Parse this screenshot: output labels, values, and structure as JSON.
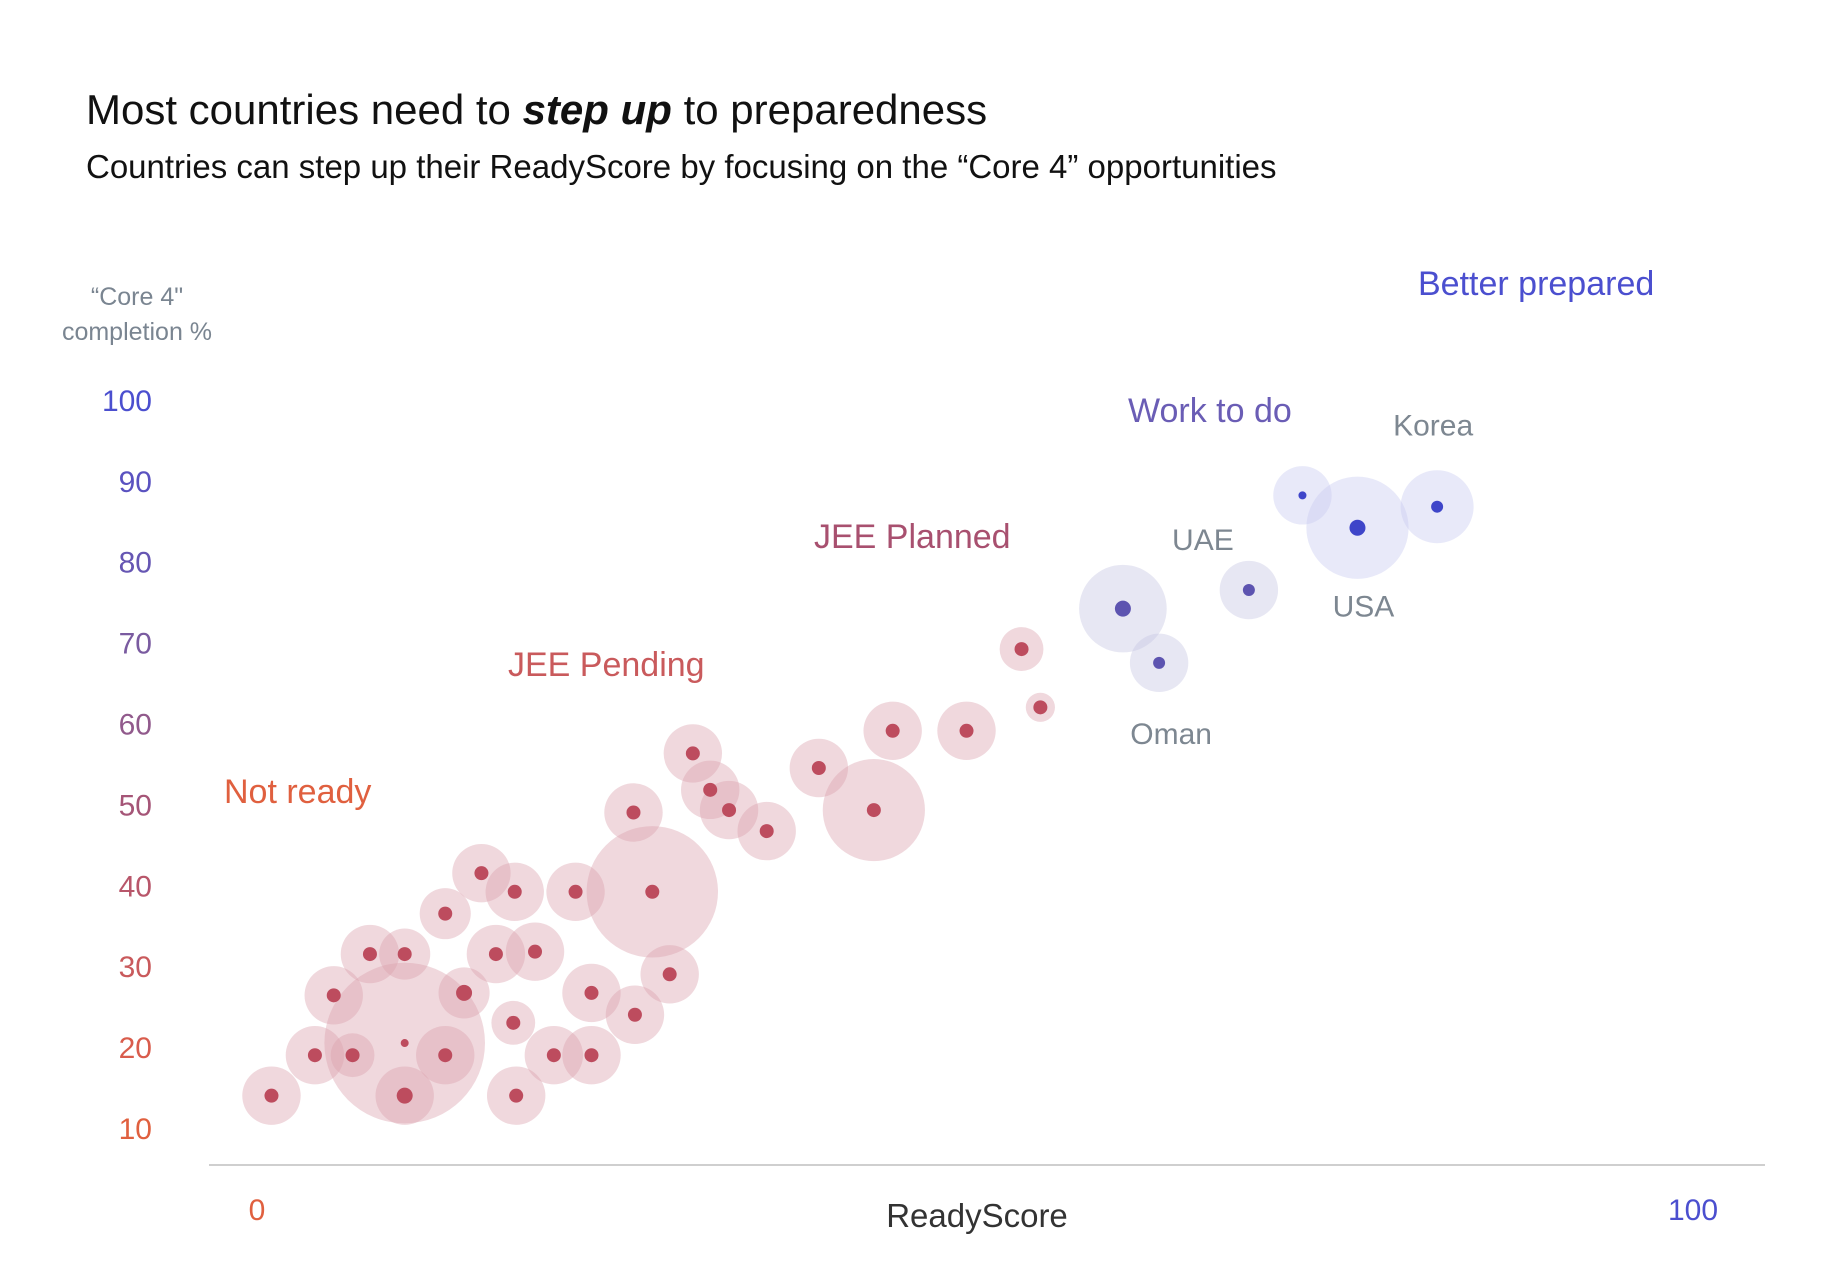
{
  "title": {
    "before": "Most countries need to ",
    "emph": "step up",
    "after": " to preparedness"
  },
  "subtitle": "Countries can step up their ReadyScore by focusing on the “Core 4” opportunities",
  "y_axis_title": {
    "line1": "“Core 4\"",
    "line2": "completion %"
  },
  "chart_data": {
    "type": "scatter",
    "xlabel": "ReadyScore",
    "ylabel": "“Core 4\" completion %",
    "xlim": [
      0,
      100
    ],
    "ylim": [
      5,
      105
    ],
    "x_tick_labels": [
      {
        "value": 0,
        "label": "0",
        "color": "#e0603f"
      },
      {
        "value": 100,
        "label": "100",
        "color": "#4b4fcf"
      }
    ],
    "y_ticks": [
      {
        "value": 10,
        "label": "10",
        "color": "#e0603f"
      },
      {
        "value": 20,
        "label": "20",
        "color": "#d95c4c"
      },
      {
        "value": 30,
        "label": "30",
        "color": "#c95a5c"
      },
      {
        "value": 40,
        "label": "40",
        "color": "#b8566a"
      },
      {
        "value": 50,
        "label": "50",
        "color": "#a55577"
      },
      {
        "value": 60,
        "label": "60",
        "color": "#915a8c"
      },
      {
        "value": 70,
        "label": "70",
        "color": "#7a5ba0"
      },
      {
        "value": 80,
        "label": "80",
        "color": "#6656b3"
      },
      {
        "value": 90,
        "label": "90",
        "color": "#5a52c0"
      },
      {
        "value": 100,
        "label": "100",
        "color": "#4b4fcf"
      }
    ],
    "grid": false,
    "size_encoding": "bubble radius",
    "groups": [
      {
        "name": "Not ready",
        "color": "#e0603f"
      },
      {
        "name": "JEE Pending",
        "color": "#c95a5c"
      },
      {
        "name": "JEE Planned",
        "color": "#a8506f"
      },
      {
        "name": "Work to do",
        "color": "#6a5db5"
      },
      {
        "name": "Better prepared",
        "color": "#4b4fcf"
      }
    ],
    "series": [
      {
        "group": "JEE Pending",
        "halo_color": "#dca3ae",
        "dot_color": "#bd4c5e",
        "points": [
          {
            "x": 1,
            "y": 14,
            "size": 4,
            "dot": 7
          },
          {
            "x": 4,
            "y": 19,
            "size": 4,
            "dot": 7
          },
          {
            "x": 5.3,
            "y": 26.4,
            "size": 4,
            "dot": 7
          },
          {
            "x": 6.6,
            "y": 19,
            "size": 3,
            "dot": 7
          },
          {
            "x": 7.8,
            "y": 31.5,
            "size": 4,
            "dot": 7
          },
          {
            "x": 10.2,
            "y": 20.5,
            "size": 11,
            "dot": 4
          },
          {
            "x": 10.2,
            "y": 31.5,
            "size": 3.5,
            "dot": 7
          },
          {
            "x": 10.2,
            "y": 14,
            "size": 4,
            "dot": 8
          },
          {
            "x": 13,
            "y": 36.5,
            "size": 3.5,
            "dot": 7
          },
          {
            "x": 13,
            "y": 19,
            "size": 4,
            "dot": 7
          },
          {
            "x": 14.3,
            "y": 26.7,
            "size": 3.5,
            "dot": 8
          },
          {
            "x": 15.5,
            "y": 41.5,
            "size": 4,
            "dot": 7
          },
          {
            "x": 16.5,
            "y": 31.5,
            "size": 4,
            "dot": 7
          },
          {
            "x": 17.8,
            "y": 39.2,
            "size": 4,
            "dot": 7
          },
          {
            "x": 17.7,
            "y": 23,
            "size": 3,
            "dot": 7
          },
          {
            "x": 17.9,
            "y": 14,
            "size": 4,
            "dot": 7
          },
          {
            "x": 19.2,
            "y": 31.8,
            "size": 4,
            "dot": 7
          },
          {
            "x": 20.5,
            "y": 19,
            "size": 4,
            "dot": 7
          },
          {
            "x": 22,
            "y": 39.2,
            "size": 4,
            "dot": 7
          },
          {
            "x": 23.1,
            "y": 26.7,
            "size": 4,
            "dot": 7
          },
          {
            "x": 23.1,
            "y": 19,
            "size": 4,
            "dot": 7
          },
          {
            "x": 26,
            "y": 49,
            "size": 4,
            "dot": 7
          },
          {
            "x": 26.1,
            "y": 24,
            "size": 4,
            "dot": 7
          },
          {
            "x": 27.3,
            "y": 39.2,
            "size": 9,
            "dot": 7
          },
          {
            "x": 28.5,
            "y": 29,
            "size": 4,
            "dot": 7
          },
          {
            "x": 30.1,
            "y": 56.3,
            "size": 4,
            "dot": 7
          },
          {
            "x": 31.3,
            "y": 51.8,
            "size": 4,
            "dot": 7
          },
          {
            "x": 32.6,
            "y": 49.3,
            "size": 4,
            "dot": 7
          },
          {
            "x": 35.2,
            "y": 46.7,
            "size": 4,
            "dot": 7
          },
          {
            "x": 38.8,
            "y": 54.5,
            "size": 4,
            "dot": 7
          }
        ]
      },
      {
        "group": "JEE Planned",
        "halo_color": "#dca3ae",
        "dot_color": "#bd4c5e",
        "points": [
          {
            "x": 42.6,
            "y": 49.3,
            "size": 7,
            "dot": 7
          },
          {
            "x": 43.9,
            "y": 59.1,
            "size": 4,
            "dot": 7
          },
          {
            "x": 49,
            "y": 59.1,
            "size": 4,
            "dot": 7
          },
          {
            "x": 52.8,
            "y": 69.2,
            "size": 3,
            "dot": 7
          },
          {
            "x": 54.1,
            "y": 62,
            "size": 2,
            "dot": 7
          }
        ]
      },
      {
        "group": "Work to do",
        "halo_color": "#c6c5e3",
        "dot_color": "#5d54b0",
        "points": [
          {
            "x": 59.8,
            "y": 74.2,
            "size": 6,
            "dot": 8
          },
          {
            "x": 62.3,
            "y": 67.5,
            "size": 4,
            "dot": 6,
            "label": "Oman"
          },
          {
            "x": 68.5,
            "y": 76.5,
            "size": 4,
            "dot": 6,
            "label": "UAE"
          }
        ]
      },
      {
        "group": "Better prepared",
        "halo_color": "#c9cbf1",
        "dot_color": "#3e45c9",
        "points": [
          {
            "x": 72.2,
            "y": 88.2,
            "size": 4,
            "dot": 4
          },
          {
            "x": 76,
            "y": 84.2,
            "size": 7,
            "dot": 8,
            "label": "USA"
          },
          {
            "x": 81.5,
            "y": 86.8,
            "size": 5,
            "dot": 6,
            "label": "Korea"
          }
        ]
      }
    ]
  }
}
